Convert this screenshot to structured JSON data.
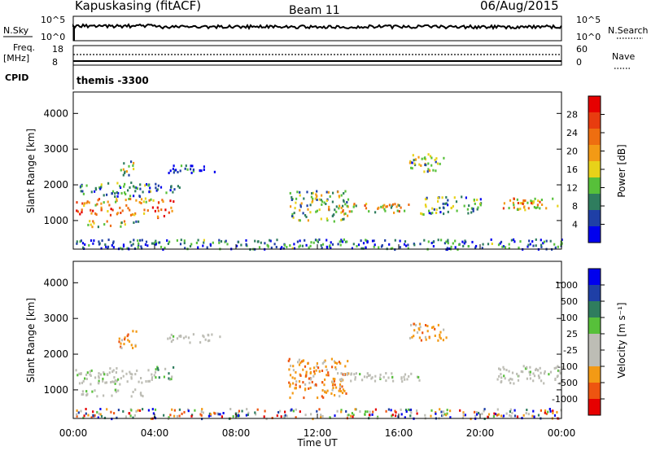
{
  "header": {
    "station": "Kapuskasing (fitACF)",
    "beam": "Beam 11",
    "date": "06/Aug/2015"
  },
  "strip_panels": {
    "nsky_label": "N.Sky",
    "nsky_ticks": [
      "10^5",
      "10^0"
    ],
    "nsearch_label": "N.Search",
    "nsearch_ticks": [
      "10^5",
      "10^0"
    ],
    "freq_label": "Freq.",
    "freq_unit": "[MHz]",
    "freq_ticks": [
      "18",
      "8"
    ],
    "nave_label": "Nave",
    "nave_ticks": [
      "60",
      "0"
    ],
    "cpid_label": "CPID",
    "cpid_value": "themis -3300"
  },
  "chart_data": [
    {
      "type": "heatmap",
      "name": "power",
      "xlabel": "",
      "ylabel": "Slant Range [km]",
      "x_ticks": [],
      "y_ticks": [
        "1000",
        "2000",
        "3000",
        "4000"
      ],
      "xlim": [
        0,
        24
      ],
      "ylim": [
        200,
        4600
      ],
      "colorbar": {
        "label": "Power [dB]",
        "ticks": [
          "4",
          "8",
          "12",
          "16",
          "20",
          "24",
          "28"
        ],
        "colors": [
          "#0000ee",
          "#1f3fa6",
          "#2f7d5e",
          "#57c03a",
          "#e8d219",
          "#f39a15",
          "#ee6e10",
          "#e83c0f",
          "#e60000"
        ]
      },
      "regions": [
        {
          "t": [
            0.1,
            4.0
          ],
          "r": [
            1450,
            1650
          ],
          "level": 0.6
        },
        {
          "t": [
            0.1,
            4.0
          ],
          "r": [
            1180,
            1400
          ],
          "level": 0.75
        },
        {
          "t": [
            0.5,
            3.2
          ],
          "r": [
            850,
            1020
          ],
          "level": 0.45
        },
        {
          "t": [
            0.3,
            3.5
          ],
          "r": [
            1700,
            2100
          ],
          "level": 0.25
        },
        {
          "t": [
            2.3,
            3.0
          ],
          "r": [
            2200,
            2700
          ],
          "level": 0.4
        },
        {
          "t": [
            4.1,
            4.9
          ],
          "r": [
            1100,
            1650
          ],
          "level": 0.85
        },
        {
          "t": [
            3.5,
            5.2
          ],
          "r": [
            1800,
            2100
          ],
          "level": 0.2
        },
        {
          "t": [
            4.6,
            7.0
          ],
          "r": [
            2350,
            2600
          ],
          "level": 0.15
        },
        {
          "t": [
            10.6,
            13.5
          ],
          "r": [
            1000,
            1900
          ],
          "level": 0.4
        },
        {
          "t": [
            12.5,
            17.0
          ],
          "r": [
            1250,
            1500
          ],
          "level": 0.55
        },
        {
          "t": [
            16.5,
            18.3
          ],
          "r": [
            2400,
            2900
          ],
          "level": 0.35
        },
        {
          "t": [
            17.0,
            20.0
          ],
          "r": [
            1200,
            1700
          ],
          "level": 0.3
        },
        {
          "t": [
            21.0,
            23.9
          ],
          "r": [
            1300,
            1650
          ],
          "level": 0.6
        },
        {
          "t": [
            0.0,
            24.0
          ],
          "r": [
            220,
            500
          ],
          "level": 0.2
        }
      ]
    },
    {
      "type": "heatmap",
      "name": "velocity",
      "xlabel": "Time UT",
      "ylabel": "Slant Range [km]",
      "x_ticks": [
        "00:00",
        "04:00",
        "08:00",
        "12:00",
        "16:00",
        "20:00",
        "00:00"
      ],
      "y_ticks": [
        "1000",
        "2000",
        "3000",
        "4000"
      ],
      "xlim": [
        0,
        24
      ],
      "ylim": [
        200,
        4600
      ],
      "colorbar": {
        "label": "Velocity [m s⁻¹]",
        "ticks": [
          "-1000",
          "-500",
          "-100",
          "-25",
          "25",
          "100",
          "500",
          "1000"
        ],
        "colors": [
          "#e60000",
          "#ee5510",
          "#f39a15",
          "#bdbdb5",
          "#bdbdb5",
          "#57c03a",
          "#2f7d5e",
          "#1f3fa6",
          "#0000ee"
        ]
      },
      "regions": [
        {
          "t": [
            0.1,
            4.0
          ],
          "r": [
            1180,
            1650
          ],
          "v": "ground"
        },
        {
          "t": [
            0.3,
            3.5
          ],
          "r": [
            850,
            1050
          ],
          "v": "ground"
        },
        {
          "t": [
            2.2,
            3.1
          ],
          "r": [
            2200,
            2700
          ],
          "v": "neg"
        },
        {
          "t": [
            4.0,
            4.9
          ],
          "r": [
            1300,
            1700
          ],
          "v": "pos"
        },
        {
          "t": [
            4.6,
            7.2
          ],
          "r": [
            2350,
            2600
          ],
          "v": "ground"
        },
        {
          "t": [
            10.5,
            13.5
          ],
          "r": [
            800,
            1900
          ],
          "v": "neg"
        },
        {
          "t": [
            12.6,
            17.0
          ],
          "r": [
            1250,
            1500
          ],
          "v": "ground"
        },
        {
          "t": [
            16.5,
            18.3
          ],
          "r": [
            2400,
            2900
          ],
          "v": "neg"
        },
        {
          "t": [
            20.8,
            24.0
          ],
          "r": [
            1200,
            1700
          ],
          "v": "ground"
        },
        {
          "t": [
            0.0,
            24.0
          ],
          "r": [
            220,
            500
          ],
          "v": "mixed"
        }
      ]
    }
  ]
}
